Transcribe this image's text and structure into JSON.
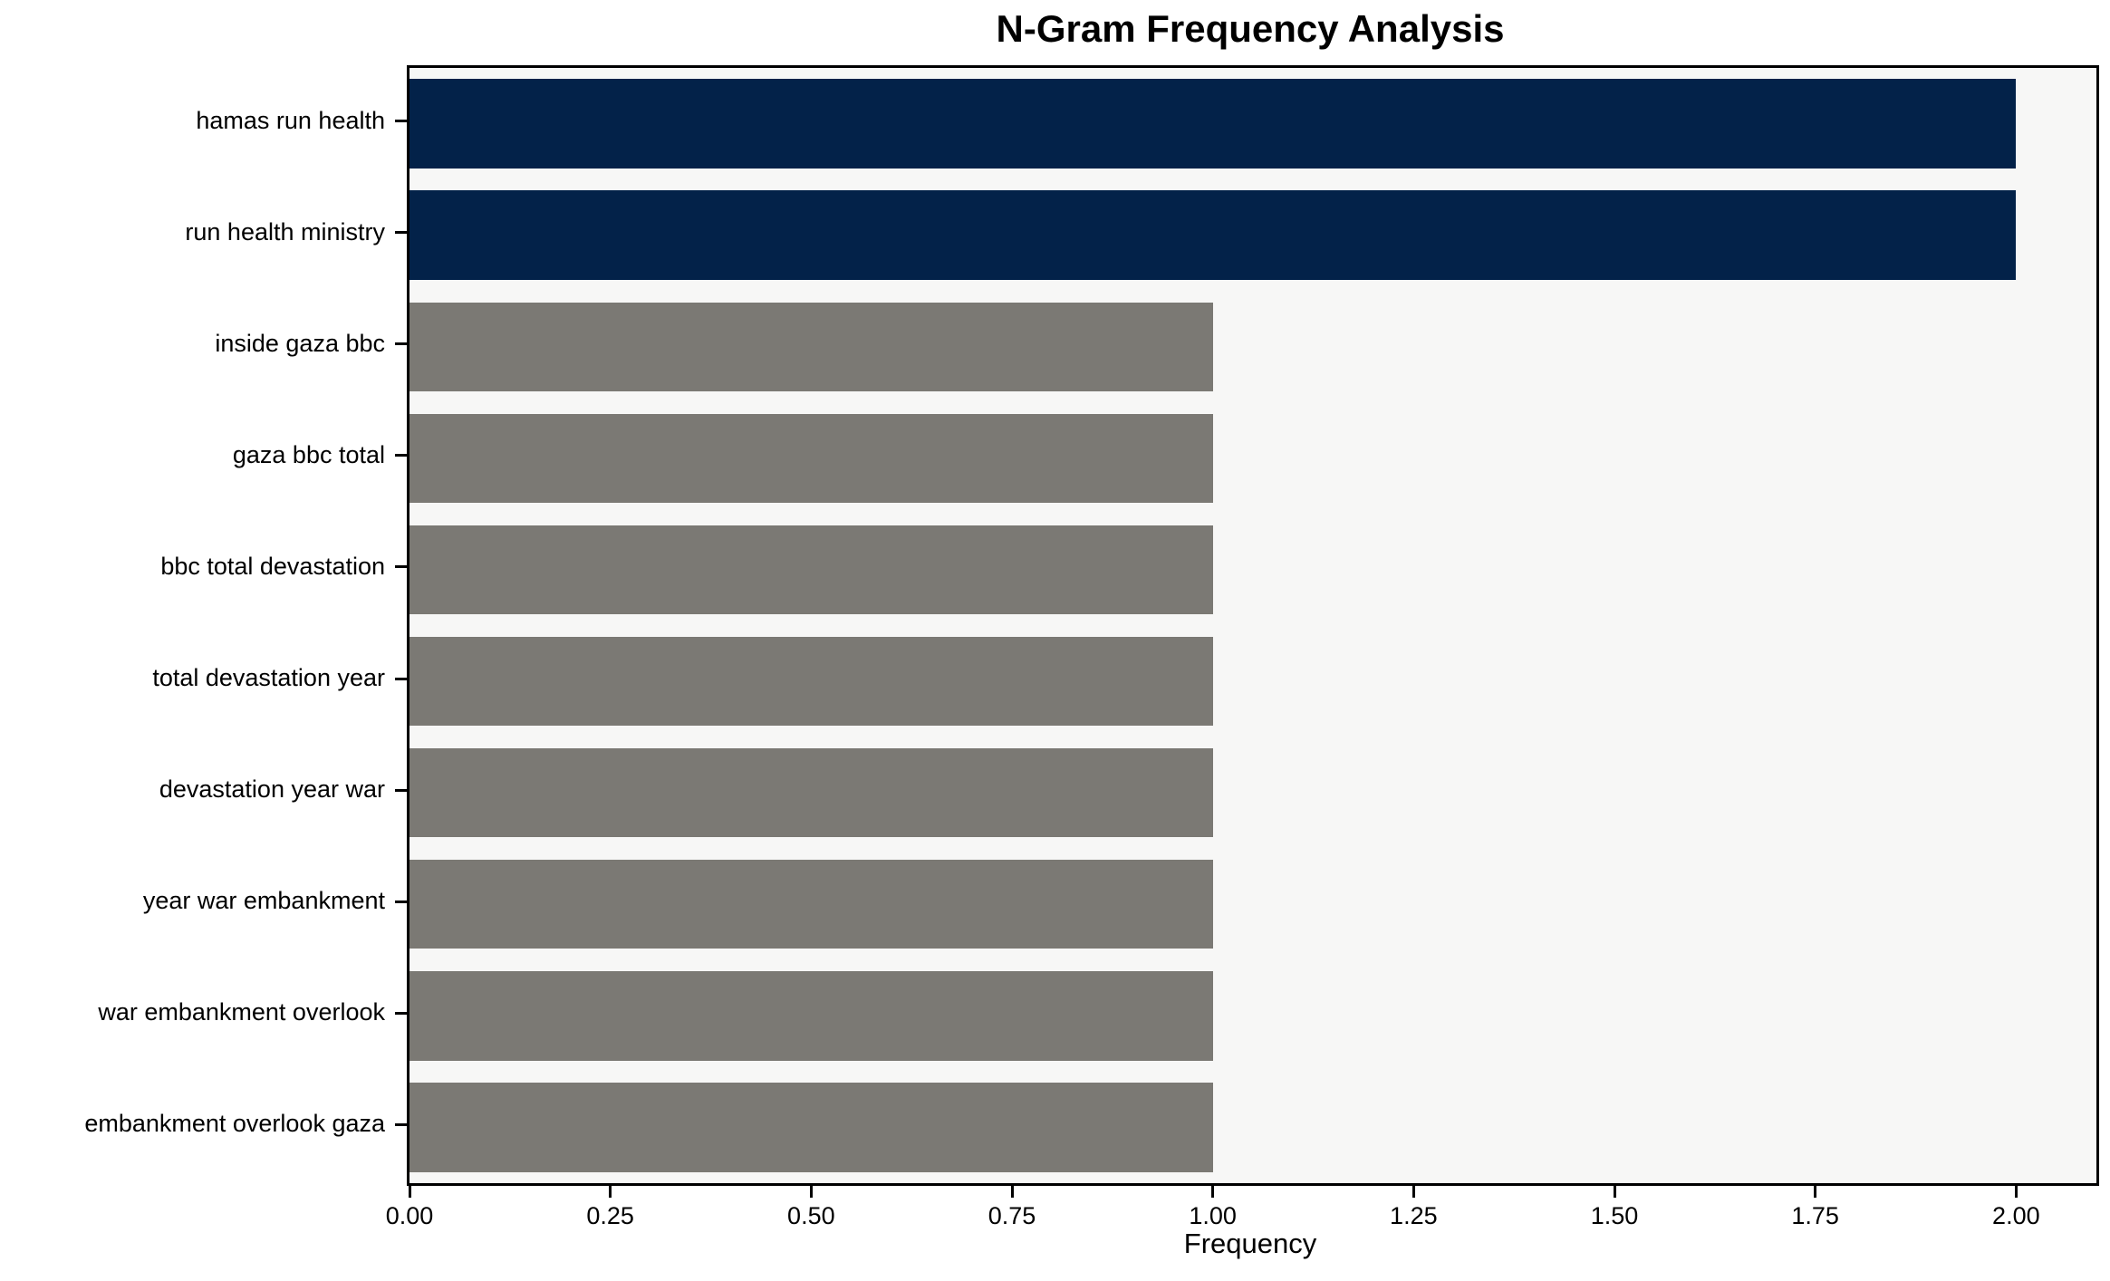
{
  "page": {
    "background_color": "#ffffff"
  },
  "chart_data": {
    "type": "bar",
    "orientation": "horizontal",
    "title": "N-Gram Frequency Analysis",
    "xlabel": "Frequency",
    "ylabel": "",
    "categories": [
      "hamas run health",
      "run health ministry",
      "inside gaza bbc",
      "gaza bbc total",
      "bbc total devastation",
      "total devastation year",
      "devastation year war",
      "year war embankment",
      "war embankment overlook",
      "embankment overlook gaza"
    ],
    "values": [
      2,
      2,
      1,
      1,
      1,
      1,
      1,
      1,
      1,
      1
    ],
    "xlim": [
      0,
      2.1
    ],
    "xticks": [
      {
        "value": 0.0,
        "label": "0.00"
      },
      {
        "value": 0.25,
        "label": "0.25"
      },
      {
        "value": 0.5,
        "label": "0.50"
      },
      {
        "value": 0.75,
        "label": "0.75"
      },
      {
        "value": 1.0,
        "label": "1.00"
      },
      {
        "value": 1.25,
        "label": "1.25"
      },
      {
        "value": 1.5,
        "label": "1.50"
      },
      {
        "value": 1.75,
        "label": "1.75"
      },
      {
        "value": 2.0,
        "label": "2.00"
      }
    ],
    "bar_colors": [
      "#032249",
      "#032249",
      "#7b7974",
      "#7b7974",
      "#7b7974",
      "#7b7974",
      "#7b7974",
      "#7b7974",
      "#7b7974",
      "#7b7974"
    ],
    "colors": {
      "highlight_bar": "#032249",
      "default_bar": "#7b7974",
      "plot_background": "#f7f7f6",
      "spine": "#000000",
      "text": "#000000"
    },
    "grid": false,
    "legend": "none",
    "bar_height_fraction": 0.8
  }
}
